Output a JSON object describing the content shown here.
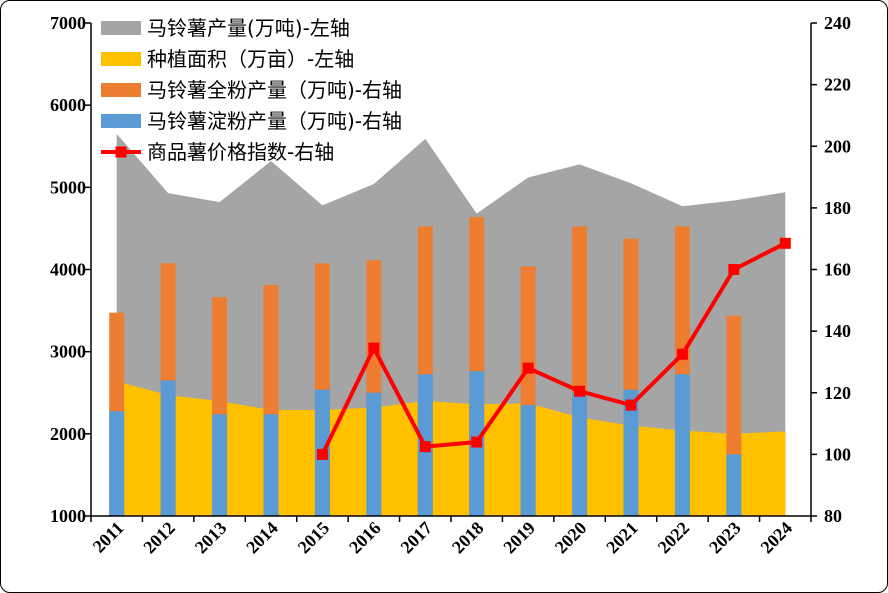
{
  "chart_data": {
    "type": "combo",
    "categories": [
      "2011",
      "2012",
      "2013",
      "2014",
      "2015",
      "2016",
      "2017",
      "2018",
      "2019",
      "2020",
      "2021",
      "2022",
      "2023",
      "2024"
    ],
    "left_axis": {
      "ylim": [
        1000,
        7000
      ],
      "ticks": [
        "1000",
        "2000",
        "3000",
        "4000",
        "5000",
        "6000",
        "7000"
      ]
    },
    "right_axis": {
      "ylim": [
        80,
        240
      ],
      "ticks": [
        "80",
        "100",
        "120",
        "140",
        "160",
        "180",
        "200",
        "220",
        "240"
      ]
    },
    "grid": false,
    "legend_position": "top-left",
    "series": [
      {
        "name": "马铃薯产量(万吨)-左轴",
        "type": "area",
        "axis": "left",
        "color": "#a5a5a5",
        "values": [
          5650,
          4930,
          4820,
          5320,
          4780,
          5040,
          5590,
          4680,
          5120,
          5280,
          5050,
          4770,
          4840,
          4940
        ]
      },
      {
        "name": "种植面积（万亩）-左轴",
        "type": "area",
        "axis": "left",
        "color": "#ffc000",
        "values": [
          2640,
          2470,
          2400,
          2290,
          2290,
          2320,
          2400,
          2360,
          2370,
          2200,
          2100,
          2040,
          2000,
          2030
        ]
      },
      {
        "name": "马铃薯全粉产量（万吨)-右轴",
        "type": "bar",
        "axis": "right",
        "color": "#ed7d31",
        "values": [
          146,
          162,
          151,
          155,
          162,
          163,
          174,
          177,
          161,
          174,
          170,
          174,
          145,
          null
        ]
      },
      {
        "name": "马铃薯淀粉产量（万吨)-右轴",
        "type": "bar",
        "axis": "right",
        "color": "#5b9bd5",
        "values": [
          114,
          124,
          113,
          113,
          121,
          120,
          126,
          127,
          116,
          120,
          121,
          126,
          100,
          null
        ]
      },
      {
        "name": "商品薯价格指数-右轴",
        "type": "line",
        "axis": "right",
        "color": "#ff0000",
        "values": [
          null,
          null,
          null,
          null,
          100,
          134.5,
          102.5,
          104,
          128,
          120.5,
          116,
          132.5,
          160,
          168.5
        ]
      }
    ]
  }
}
